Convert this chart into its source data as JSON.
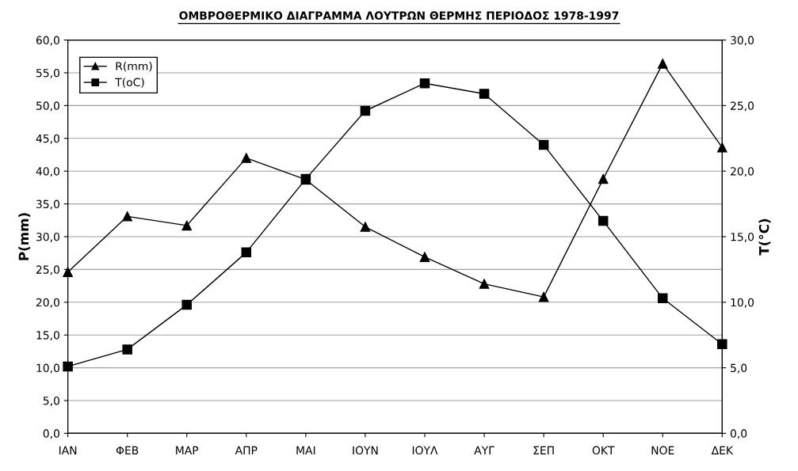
{
  "chart_data": {
    "type": "line",
    "title": "ΟΜΒΡΟΘΕΡΜΙΚΟ ΔΙΑΓΡΑΜΜΑ ΛΟΥΤΡΩΝ ΘΕΡΜΗΣ ΠΕΡΙΟΔΟΣ 1978-1997",
    "ylabel": "P(mm)",
    "y2label": "T(°C)",
    "categories": [
      "ΙΑΝ",
      "ΦΕΒ",
      "ΜΑΡ",
      "ΑΠΡ",
      "ΜΑΙ",
      "ΙΟΥΝ",
      "ΙΟΥΛ",
      "ΑΥΓ",
      "ΣΕΠ",
      "ΟΚΤ",
      "ΝΟΕ",
      "ΔΕΚ"
    ],
    "series": [
      {
        "name": "R(mm)",
        "color": "#000000",
        "marker": "triangle",
        "values": [
          24.6,
          33.1,
          31.7,
          42.0,
          38.7,
          31.5,
          26.9,
          22.8,
          20.8,
          38.8,
          56.4,
          43.6
        ]
      },
      {
        "name": "T(oC)",
        "color": "#000000",
        "marker": "square",
        "axis": "y2",
        "values": [
          5.1,
          6.4,
          9.8,
          13.8,
          19.4,
          24.6,
          26.7,
          25.9,
          22.0,
          16.2,
          10.3,
          6.8
        ]
      }
    ],
    "ylim": [
      0,
      60
    ],
    "yticks": [
      {
        "value": 0,
        "label": "0,0"
      },
      {
        "value": 5,
        "label": "5,0"
      },
      {
        "value": 10,
        "label": "10,0"
      },
      {
        "value": 15,
        "label": "15,0"
      },
      {
        "value": 20,
        "label": "20,0"
      },
      {
        "value": 25,
        "label": "25,0"
      },
      {
        "value": 30,
        "label": "30,0"
      },
      {
        "value": 35,
        "label": "35,0"
      },
      {
        "value": 40,
        "label": "40,0"
      },
      {
        "value": 45,
        "label": "45,0"
      },
      {
        "value": 50,
        "label": "50,0"
      },
      {
        "value": 55,
        "label": "55,0"
      },
      {
        "value": 60,
        "label": "60,0"
      }
    ],
    "y2lim": [
      0,
      30
    ],
    "y2ticks": [
      {
        "value": 0,
        "label": "0,0"
      },
      {
        "value": 5,
        "label": "5,0"
      },
      {
        "value": 10,
        "label": "10,0"
      },
      {
        "value": 15,
        "label": "15,0"
      },
      {
        "value": 20,
        "label": "20,0"
      },
      {
        "value": 25,
        "label": "25,0"
      },
      {
        "value": 30,
        "label": "30,0"
      }
    ],
    "grid": "y",
    "legend": "top left",
    "line_style": "solid"
  }
}
